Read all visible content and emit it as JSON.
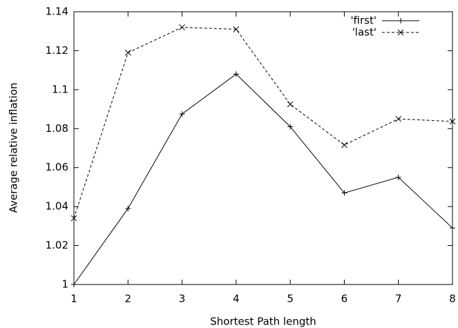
{
  "chart_data": {
    "type": "line",
    "xlabel": "Shortest Path length",
    "ylabel": "Average relative inflation",
    "x": [
      1,
      2,
      3,
      4,
      5,
      6,
      7,
      8
    ],
    "series": [
      {
        "name": "'first'",
        "color": "#000000",
        "line_style": "solid",
        "marker": "plus",
        "values": [
          1.0,
          1.039,
          1.0875,
          1.108,
          1.081,
          1.047,
          1.055,
          1.029
        ]
      },
      {
        "name": "'last'",
        "color": "#000000",
        "line_style": "dashed",
        "marker": "cross",
        "values": [
          1.034,
          1.119,
          1.132,
          1.131,
          1.0925,
          1.0716,
          1.085,
          1.0837
        ]
      }
    ],
    "xlim": [
      1,
      8
    ],
    "xticks": [
      1,
      2,
      3,
      4,
      5,
      6,
      7,
      8
    ],
    "ylim": [
      1,
      1.14
    ],
    "yticks": [
      1,
      1.02,
      1.04,
      1.06,
      1.08,
      1.1,
      1.12,
      1.14
    ],
    "legend": "top-right",
    "grid": false
  }
}
